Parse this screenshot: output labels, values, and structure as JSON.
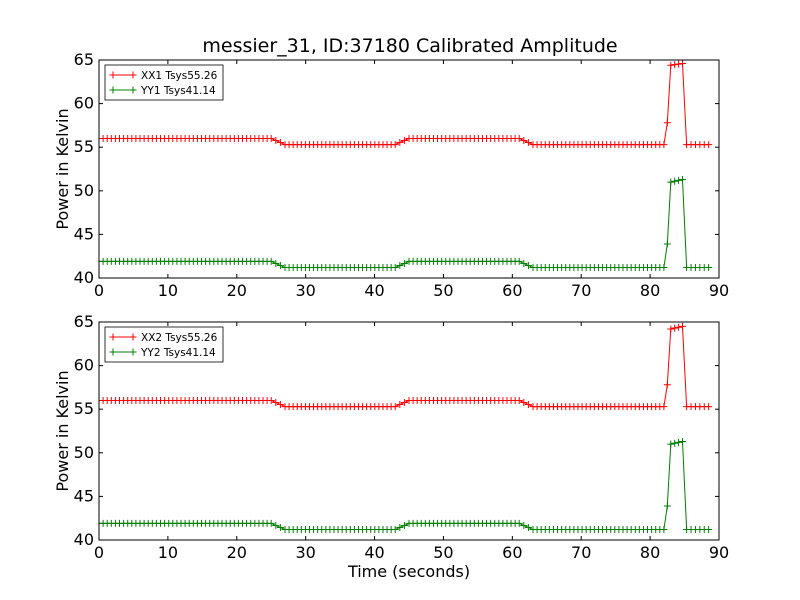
{
  "chart_data": [
    {
      "type": "line",
      "title": "messier_31, ID:37180 Calibrated Amplitude",
      "xlabel": "",
      "ylabel": "Power in Kelvin",
      "xlim": [
        0,
        90
      ],
      "ylim": [
        40,
        65
      ],
      "xticks": [
        "0",
        "10",
        "20",
        "30",
        "40",
        "50",
        "60",
        "70",
        "80",
        "90"
      ],
      "yticks": [
        "40",
        "45",
        "50",
        "55",
        "60",
        "65"
      ],
      "grid": false,
      "legend_position": "top-left",
      "series": [
        {
          "name": "XX1 Tsys55.26",
          "color": "#ff0000",
          "marker": "plus",
          "points": [
            [
              0,
              56.0
            ],
            [
              25,
              56.0
            ],
            [
              27,
              55.3
            ],
            [
              43,
              55.3
            ],
            [
              45,
              56.0
            ],
            [
              61,
              56.0
            ],
            [
              63,
              55.3
            ],
            [
              82,
              55.3
            ],
            [
              82.5,
              57.8
            ],
            [
              83,
              64.4
            ],
            [
              84.7,
              64.6
            ],
            [
              85.3,
              55.3
            ],
            [
              88.5,
              55.3
            ]
          ]
        },
        {
          "name": "YY1 Tsys41.14",
          "color": "#008000",
          "marker": "plus",
          "points": [
            [
              0,
              41.9
            ],
            [
              25,
              41.9
            ],
            [
              27,
              41.2
            ],
            [
              43,
              41.2
            ],
            [
              45,
              41.9
            ],
            [
              61,
              41.9
            ],
            [
              63,
              41.2
            ],
            [
              82,
              41.2
            ],
            [
              82.5,
              43.9
            ],
            [
              83,
              51.0
            ],
            [
              84.7,
              51.3
            ],
            [
              85.3,
              41.2
            ],
            [
              88.5,
              41.2
            ]
          ]
        }
      ]
    },
    {
      "type": "line",
      "title": "",
      "xlabel": "Time (seconds)",
      "ylabel": "Power in Kelvin",
      "xlim": [
        0,
        90
      ],
      "ylim": [
        40,
        65
      ],
      "xticks": [
        "0",
        "10",
        "20",
        "30",
        "40",
        "50",
        "60",
        "70",
        "80",
        "90"
      ],
      "yticks": [
        "40",
        "45",
        "50",
        "55",
        "60",
        "65"
      ],
      "grid": false,
      "legend_position": "top-left",
      "series": [
        {
          "name": "XX2 Tsys55.26",
          "color": "#ff0000",
          "marker": "plus",
          "points": [
            [
              0,
              56.0
            ],
            [
              25,
              56.0
            ],
            [
              27,
              55.3
            ],
            [
              43,
              55.3
            ],
            [
              45,
              56.0
            ],
            [
              61,
              56.0
            ],
            [
              63,
              55.3
            ],
            [
              82,
              55.3
            ],
            [
              82.5,
              57.8
            ],
            [
              83,
              64.2
            ],
            [
              84.7,
              64.5
            ],
            [
              85.3,
              55.3
            ],
            [
              88.5,
              55.3
            ]
          ]
        },
        {
          "name": "YY2 Tsys41.14",
          "color": "#008000",
          "marker": "plus",
          "points": [
            [
              0,
              41.9
            ],
            [
              25,
              41.9
            ],
            [
              27,
              41.2
            ],
            [
              43,
              41.2
            ],
            [
              45,
              41.9
            ],
            [
              61,
              41.9
            ],
            [
              63,
              41.2
            ],
            [
              82,
              41.2
            ],
            [
              82.5,
              43.9
            ],
            [
              83,
              51.0
            ],
            [
              84.7,
              51.3
            ],
            [
              85.3,
              41.2
            ],
            [
              88.5,
              41.2
            ]
          ]
        }
      ]
    }
  ]
}
